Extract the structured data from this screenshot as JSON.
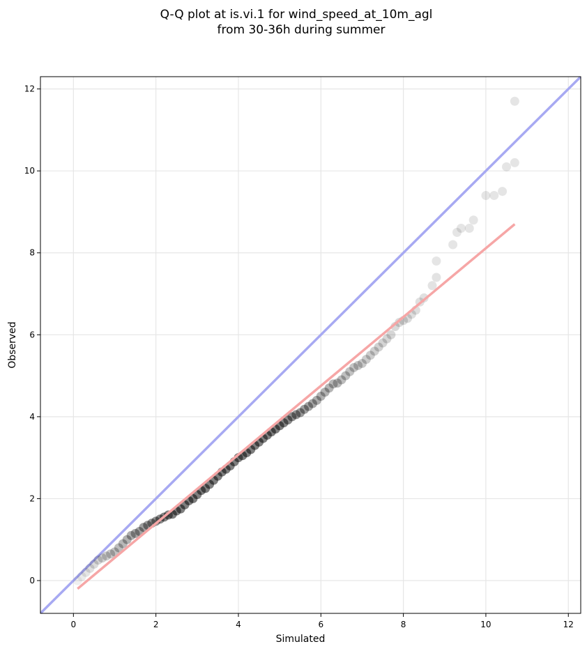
{
  "chart_data": {
    "type": "scatter",
    "title": "Q-Q plot at is.vi.1 for wind_speed_at_10m_agl",
    "subtitle": "from 30-36h during summer",
    "xlabel": "Simulated",
    "ylabel": "Observed",
    "xlim": [
      -0.8,
      12.3
    ],
    "ylim": [
      -0.8,
      12.3
    ],
    "xticks": [
      0,
      2,
      4,
      6,
      8,
      10,
      12
    ],
    "yticks": [
      0,
      2,
      4,
      6,
      8,
      10,
      12
    ],
    "xtick_labels": [
      "0",
      "2",
      "4",
      "6",
      "8",
      "10",
      "12"
    ],
    "ytick_labels": [
      "0",
      "2",
      "4",
      "6",
      "8",
      "10",
      "12"
    ],
    "grid": true,
    "colors": {
      "points": "#000000",
      "identity_line": "#a7a9f2",
      "fit_line": "#f6a6a6"
    },
    "identity_line": {
      "x": [
        -0.8,
        12.3
      ],
      "y": [
        -0.8,
        12.3
      ]
    },
    "fit_line": {
      "x": [
        0.1,
        10.7
      ],
      "y": [
        -0.2,
        8.7
      ]
    },
    "points": {
      "x": [
        0.1,
        0.2,
        0.3,
        0.4,
        0.5,
        0.6,
        0.7,
        0.8,
        0.9,
        1.0,
        1.1,
        1.2,
        1.3,
        1.4,
        1.5,
        1.6,
        1.7,
        1.8,
        1.9,
        2.0,
        2.1,
        2.2,
        2.3,
        2.4,
        2.5,
        2.6,
        2.7,
        2.8,
        2.9,
        3.0,
        3.1,
        3.2,
        3.3,
        3.4,
        3.5,
        3.6,
        3.7,
        3.8,
        3.9,
        4.0,
        4.1,
        4.2,
        4.3,
        4.4,
        4.5,
        4.6,
        4.7,
        4.8,
        4.9,
        5.0,
        5.1,
        5.2,
        5.3,
        5.4,
        5.5,
        5.6,
        5.7,
        5.8,
        5.9,
        6.0,
        6.1,
        6.2,
        6.3,
        6.4,
        6.5,
        6.6,
        6.7,
        6.8,
        6.9,
        7.0,
        7.1,
        7.2,
        7.3,
        7.4,
        7.5,
        7.6,
        7.7,
        7.8,
        7.9,
        8.0,
        8.1,
        8.2,
        8.3,
        8.4,
        8.5,
        8.7,
        8.8,
        8.8,
        9.2,
        9.3,
        9.4,
        9.6,
        9.7,
        10.0,
        10.2,
        10.4,
        10.5,
        10.7,
        10.7
      ],
      "y": [
        0.0,
        0.1,
        0.2,
        0.3,
        0.4,
        0.5,
        0.55,
        0.6,
        0.65,
        0.7,
        0.8,
        0.9,
        1.0,
        1.1,
        1.15,
        1.2,
        1.3,
        1.35,
        1.4,
        1.45,
        1.5,
        1.55,
        1.6,
        1.62,
        1.7,
        1.75,
        1.85,
        1.95,
        2.0,
        2.1,
        2.2,
        2.25,
        2.35,
        2.45,
        2.55,
        2.65,
        2.72,
        2.8,
        2.9,
        3.0,
        3.05,
        3.12,
        3.2,
        3.3,
        3.38,
        3.47,
        3.55,
        3.63,
        3.7,
        3.78,
        3.85,
        3.92,
        4.0,
        4.05,
        4.1,
        4.18,
        4.25,
        4.32,
        4.4,
        4.5,
        4.6,
        4.7,
        4.8,
        4.82,
        4.9,
        5.0,
        5.1,
        5.2,
        5.25,
        5.3,
        5.4,
        5.5,
        5.6,
        5.7,
        5.8,
        5.9,
        6.0,
        6.2,
        6.3,
        6.35,
        6.4,
        6.5,
        6.6,
        6.8,
        6.9,
        7.2,
        7.4,
        7.8,
        8.2,
        8.5,
        8.6,
        8.6,
        8.8,
        9.4,
        9.4,
        9.5,
        10.1,
        10.2,
        11.7
      ],
      "alpha": [
        0.06,
        0.08,
        0.1,
        0.12,
        0.14,
        0.16,
        0.18,
        0.2,
        0.22,
        0.24,
        0.26,
        0.28,
        0.3,
        0.32,
        0.34,
        0.36,
        0.38,
        0.4,
        0.42,
        0.44,
        0.46,
        0.48,
        0.5,
        0.5,
        0.5,
        0.5,
        0.5,
        0.5,
        0.5,
        0.5,
        0.5,
        0.5,
        0.5,
        0.5,
        0.5,
        0.5,
        0.5,
        0.5,
        0.5,
        0.5,
        0.5,
        0.5,
        0.5,
        0.5,
        0.5,
        0.5,
        0.5,
        0.5,
        0.5,
        0.5,
        0.48,
        0.46,
        0.44,
        0.42,
        0.4,
        0.38,
        0.36,
        0.34,
        0.32,
        0.3,
        0.3,
        0.29,
        0.28,
        0.27,
        0.26,
        0.25,
        0.24,
        0.23,
        0.22,
        0.21,
        0.2,
        0.2,
        0.19,
        0.18,
        0.17,
        0.16,
        0.16,
        0.15,
        0.15,
        0.14,
        0.14,
        0.13,
        0.13,
        0.12,
        0.12,
        0.11,
        0.11,
        0.1,
        0.1,
        0.1,
        0.1,
        0.1,
        0.1,
        0.1,
        0.1,
        0.1,
        0.1,
        0.1,
        0.1
      ]
    }
  }
}
